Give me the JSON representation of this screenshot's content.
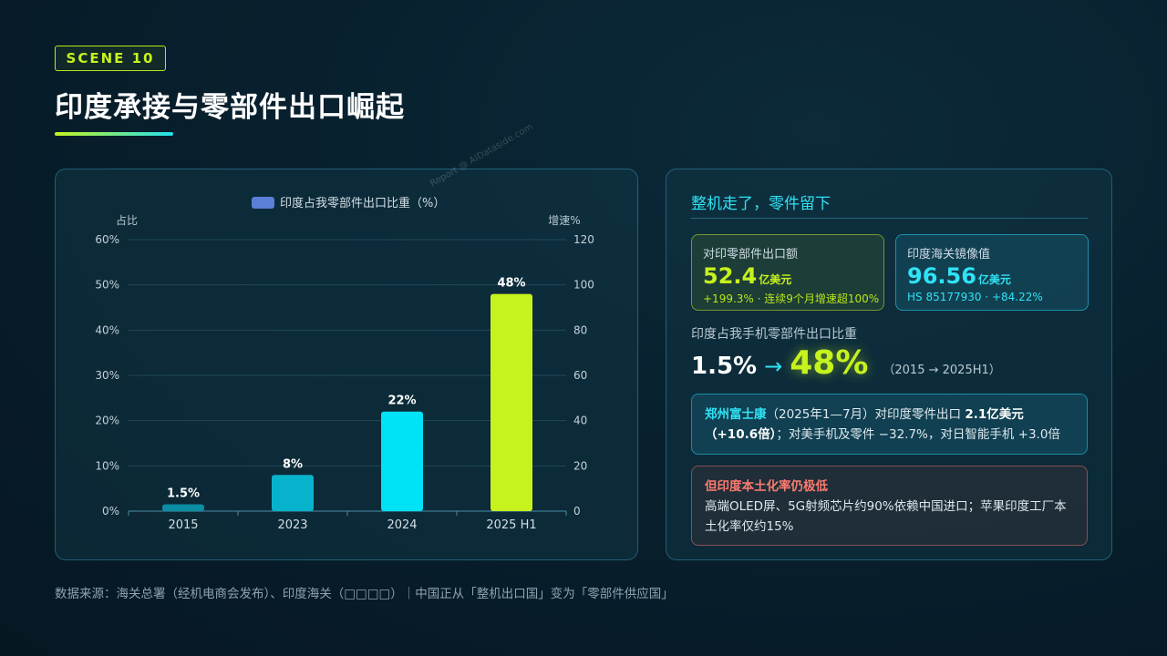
{
  "header": {
    "scene_label": "SCENE 10",
    "title": "印度承接与零部件出口崛起"
  },
  "watermark": "Report @ AIDataside.com",
  "chart_data": {
    "type": "bar",
    "legend": "印度占我零部件出口比重（%）",
    "legend_position": "top-center",
    "left_axis_label": "占比",
    "right_axis_label": "增速%",
    "categories": [
      "2015",
      "2023",
      "2024",
      "2025 H1"
    ],
    "values": [
      1.5,
      8,
      22,
      48
    ],
    "data_labels": [
      "1.5%",
      "8%",
      "22%",
      "48%"
    ],
    "bar_colors": [
      "#0b8ea3",
      "#07b3cc",
      "#00e2f5",
      "#c6f21d"
    ],
    "left_ticks": [
      "0%",
      "10%",
      "20%",
      "30%",
      "40%",
      "50%",
      "60%"
    ],
    "right_ticks": [
      "0",
      "20",
      "40",
      "60",
      "80",
      "100",
      "120"
    ],
    "ylim": [
      0,
      60
    ],
    "y2lim": [
      0,
      120
    ],
    "grid": true
  },
  "side": {
    "heading": "整机走了，零件留下",
    "card1": {
      "label": "对印零部件出口额",
      "value": "52.4",
      "unit": "亿美元",
      "sub": "+199.3% · 连续9个月增速超100%"
    },
    "card2": {
      "label": "印度海关镜像值",
      "value": "96.56",
      "unit": "亿美元",
      "sub": "HS 85177930 · +84.22%"
    },
    "ratio_label": "印度占我手机零部件出口比重",
    "ratio_from": "1.5%",
    "ratio_arrow": "→",
    "ratio_to": "48%",
    "ratio_period": "（2015 → 2025H1）",
    "box1": {
      "highlight": "郑州富士康",
      "text1": "（2025年1—7月）对印度零件出口 ",
      "bold": "2.1亿美元（+10.6倍）",
      "text2": "；对美手机及零件 −32.7%，对日智能手机 +3.0倍"
    },
    "box2": {
      "title": "但印度本土化率仍极低",
      "text": "高端OLED屏、5G射频芯片约90%依赖中国进口；苹果印度工厂本土化率仅约15%"
    }
  },
  "footer": "数据来源：海关总署（经机电商会发布）、印度海关（□□□□）｜中国正从「整机出口国」变为「零部件供应国」"
}
